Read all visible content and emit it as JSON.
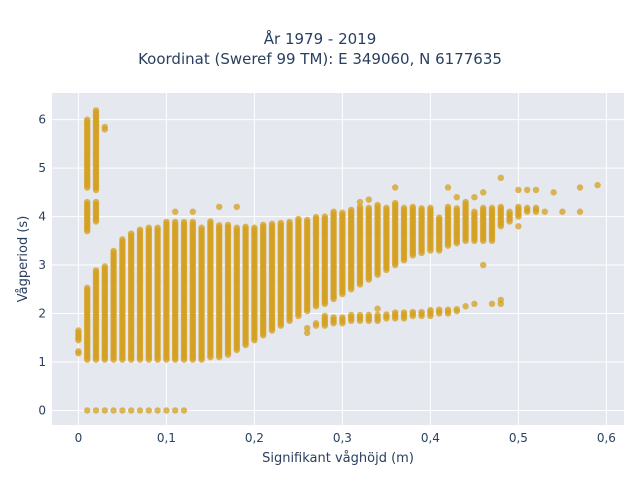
{
  "chart_data": {
    "type": "scatter",
    "title_lines": [
      "År 1979 - 2019",
      "Koordinat (Sweref 99 TM): E 349060, N 6177635"
    ],
    "xlabel": "Signifikant våghöjd (m)",
    "ylabel": "Vågperiod (s)",
    "xlim": [
      -0.03,
      0.62
    ],
    "ylim": [
      -0.3,
      6.55
    ],
    "x_ticks": [
      0,
      0.1,
      0.2,
      0.3,
      0.4,
      0.5,
      0.6
    ],
    "x_tick_labels": [
      "0",
      "0,1",
      "0,2",
      "0,3",
      "0,4",
      "0,5",
      "0,6"
    ],
    "y_ticks": [
      0,
      1,
      2,
      3,
      4,
      5,
      6
    ],
    "y_tick_labels": [
      "0",
      "1",
      "2",
      "3",
      "4",
      "5",
      "6"
    ],
    "grid": true,
    "legend": "none",
    "marker_color": "#d4a020",
    "plot_bg": "#e5e8ef",
    "x_step": 0.01,
    "columns": [
      {
        "x": 0.0,
        "bands": [
          [
            1.18,
            1.22
          ],
          [
            1.45,
            1.65
          ]
        ]
      },
      {
        "x": 0.01,
        "bands": [
          [
            1.05,
            2.55
          ],
          [
            3.7,
            4.3
          ],
          [
            4.6,
            6.0
          ]
        ],
        "extra": [
          0
        ]
      },
      {
        "x": 0.02,
        "bands": [
          [
            1.05,
            2.9
          ],
          [
            3.9,
            4.3
          ],
          [
            4.55,
            6.2
          ]
        ],
        "extra": [
          0
        ]
      },
      {
        "x": 0.03,
        "bands": [
          [
            1.05,
            3.0
          ]
        ],
        "extra": [
          0,
          5.8,
          5.85
        ]
      },
      {
        "x": 0.04,
        "bands": [
          [
            1.05,
            3.3
          ]
        ],
        "extra": [
          0
        ]
      },
      {
        "x": 0.05,
        "bands": [
          [
            1.05,
            3.55
          ]
        ],
        "extra": [
          0
        ]
      },
      {
        "x": 0.06,
        "bands": [
          [
            1.05,
            3.65
          ]
        ],
        "extra": [
          0
        ]
      },
      {
        "x": 0.07,
        "bands": [
          [
            1.05,
            3.75
          ]
        ],
        "extra": [
          0
        ]
      },
      {
        "x": 0.08,
        "bands": [
          [
            1.05,
            3.8
          ]
        ],
        "extra": [
          0
        ]
      },
      {
        "x": 0.09,
        "bands": [
          [
            1.05,
            3.8
          ]
        ],
        "extra": [
          0
        ]
      },
      {
        "x": 0.1,
        "bands": [
          [
            1.05,
            3.9
          ]
        ],
        "extra": [
          0
        ]
      },
      {
        "x": 0.11,
        "bands": [
          [
            1.05,
            3.9
          ]
        ],
        "extra": [
          0,
          4.1
        ]
      },
      {
        "x": 0.12,
        "bands": [
          [
            1.05,
            3.9
          ]
        ],
        "extra": [
          0
        ]
      },
      {
        "x": 0.13,
        "bands": [
          [
            1.05,
            3.9
          ]
        ],
        "extra": [
          4.1
        ]
      },
      {
        "x": 0.14,
        "bands": [
          [
            1.05,
            3.8
          ]
        ]
      },
      {
        "x": 0.15,
        "bands": [
          [
            1.1,
            3.9
          ]
        ]
      },
      {
        "x": 0.16,
        "bands": [
          [
            1.1,
            3.85
          ]
        ],
        "extra": [
          4.2
        ]
      },
      {
        "x": 0.17,
        "bands": [
          [
            1.15,
            3.85
          ]
        ]
      },
      {
        "x": 0.18,
        "bands": [
          [
            1.25,
            3.8
          ]
        ],
        "extra": [
          4.2
        ]
      },
      {
        "x": 0.19,
        "bands": [
          [
            1.35,
            3.8
          ]
        ]
      },
      {
        "x": 0.2,
        "bands": [
          [
            1.45,
            3.8
          ]
        ]
      },
      {
        "x": 0.21,
        "bands": [
          [
            1.55,
            3.85
          ]
        ]
      },
      {
        "x": 0.22,
        "bands": [
          [
            1.65,
            3.85
          ]
        ]
      },
      {
        "x": 0.23,
        "bands": [
          [
            1.75,
            3.9
          ]
        ]
      },
      {
        "x": 0.24,
        "bands": [
          [
            1.85,
            3.9
          ]
        ]
      },
      {
        "x": 0.25,
        "bands": [
          [
            1.95,
            3.95
          ]
        ]
      },
      {
        "x": 0.26,
        "bands": [
          [
            2.05,
            3.95
          ]
        ],
        "extra": [
          1.6,
          1.7
        ]
      },
      {
        "x": 0.27,
        "bands": [
          [
            2.15,
            4.0
          ]
        ],
        "extra": [
          1.75,
          1.8
        ]
      },
      {
        "x": 0.28,
        "bands": [
          [
            2.2,
            4.0
          ],
          [
            1.75,
            1.95
          ]
        ]
      },
      {
        "x": 0.29,
        "bands": [
          [
            2.3,
            4.1
          ],
          [
            1.8,
            1.95
          ]
        ]
      },
      {
        "x": 0.3,
        "bands": [
          [
            2.4,
            4.1
          ],
          [
            1.8,
            1.95
          ]
        ]
      },
      {
        "x": 0.31,
        "bands": [
          [
            2.5,
            4.15
          ],
          [
            1.85,
            2.0
          ]
        ]
      },
      {
        "x": 0.32,
        "bands": [
          [
            2.6,
            4.2
          ],
          [
            1.85,
            2.0
          ]
        ],
        "extra": [
          4.3
        ]
      },
      {
        "x": 0.33,
        "bands": [
          [
            2.7,
            4.2
          ],
          [
            1.85,
            2.0
          ]
        ],
        "extra": [
          4.35
        ]
      },
      {
        "x": 0.34,
        "bands": [
          [
            2.8,
            4.25
          ],
          [
            1.85,
            2.0
          ]
        ],
        "extra": [
          2.1
        ]
      },
      {
        "x": 0.35,
        "bands": [
          [
            2.9,
            4.2
          ],
          [
            1.9,
            2.0
          ]
        ]
      },
      {
        "x": 0.36,
        "bands": [
          [
            3.0,
            4.3
          ],
          [
            1.9,
            2.05
          ]
        ],
        "extra": [
          4.6
        ]
      },
      {
        "x": 0.37,
        "bands": [
          [
            3.1,
            4.2
          ],
          [
            1.9,
            2.05
          ]
        ]
      },
      {
        "x": 0.38,
        "bands": [
          [
            3.2,
            4.2
          ],
          [
            1.95,
            2.05
          ]
        ]
      },
      {
        "x": 0.39,
        "bands": [
          [
            3.25,
            4.2
          ],
          [
            1.95,
            2.05
          ]
        ]
      },
      {
        "x": 0.4,
        "bands": [
          [
            3.3,
            4.2
          ],
          [
            1.95,
            2.1
          ]
        ]
      },
      {
        "x": 0.41,
        "bands": [
          [
            3.3,
            4.0
          ],
          [
            2.0,
            2.1
          ]
        ]
      },
      {
        "x": 0.42,
        "bands": [
          [
            3.4,
            4.2
          ],
          [
            2.0,
            2.1
          ]
        ],
        "extra": [
          4.6
        ]
      },
      {
        "x": 0.43,
        "bands": [
          [
            3.45,
            4.2
          ],
          [
            2.05,
            2.1
          ]
        ],
        "extra": [
          4.4
        ]
      },
      {
        "x": 0.44,
        "bands": [
          [
            3.5,
            4.3
          ]
        ],
        "extra": [
          2.15
        ]
      },
      {
        "x": 0.45,
        "bands": [
          [
            3.5,
            4.1
          ]
        ],
        "extra": [
          2.2,
          4.4
        ]
      },
      {
        "x": 0.46,
        "bands": [
          [
            3.5,
            4.2
          ]
        ],
        "extra": [
          3.0,
          4.5
        ]
      },
      {
        "x": 0.47,
        "bands": [
          [
            3.5,
            4.2
          ]
        ],
        "extra": [
          2.2
        ]
      },
      {
        "x": 0.48,
        "bands": [
          [
            3.8,
            4.2
          ]
        ],
        "extra": [
          2.2,
          2.28,
          4.8
        ]
      },
      {
        "x": 0.49,
        "bands": [
          [
            3.9,
            4.1
          ]
        ]
      },
      {
        "x": 0.5,
        "bands": [
          [
            4.0,
            4.2
          ]
        ],
        "extra": [
          3.8,
          4.55
        ]
      },
      {
        "x": 0.51,
        "bands": [
          [
            4.1,
            4.2
          ]
        ],
        "extra": [
          4.55
        ]
      },
      {
        "x": 0.52,
        "bands": [
          [
            4.1,
            4.2
          ]
        ],
        "extra": [
          4.55
        ]
      },
      {
        "x": 0.53,
        "extra": [
          4.1
        ]
      },
      {
        "x": 0.54,
        "extra": [
          4.5
        ]
      },
      {
        "x": 0.55,
        "extra": [
          4.1
        ]
      },
      {
        "x": 0.57,
        "extra": [
          4.1,
          4.6
        ]
      },
      {
        "x": 0.59,
        "extra": [
          4.65
        ]
      }
    ]
  }
}
